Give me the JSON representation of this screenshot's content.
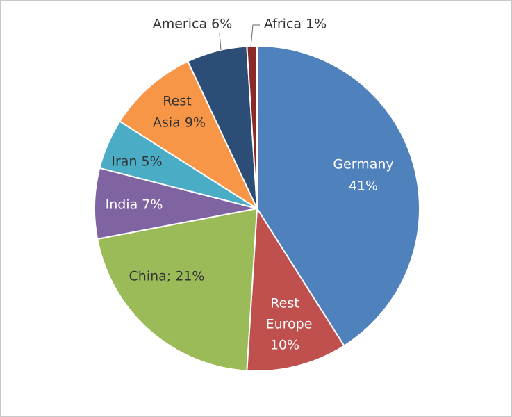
{
  "chart_data": {
    "type": "pie",
    "values": [
      41,
      10,
      21,
      7,
      5,
      9,
      6,
      1
    ],
    "value_labels": [
      [
        "Germany",
        "41%"
      ],
      [
        "Rest",
        "Europe",
        "10%"
      ],
      [
        "China; 21%"
      ],
      [
        "India 7%"
      ],
      [
        "Iran 5%"
      ],
      [
        "Rest",
        "Asia 9%"
      ],
      [
        "America 6%"
      ],
      [
        "Africa 1%"
      ]
    ],
    "colors": [
      "#4f81bd",
      "#c0504d",
      "#9bbb59",
      "#8064a2",
      "#4bacc6",
      "#f79646",
      "#2c4d75",
      "#8b2b28"
    ]
  }
}
